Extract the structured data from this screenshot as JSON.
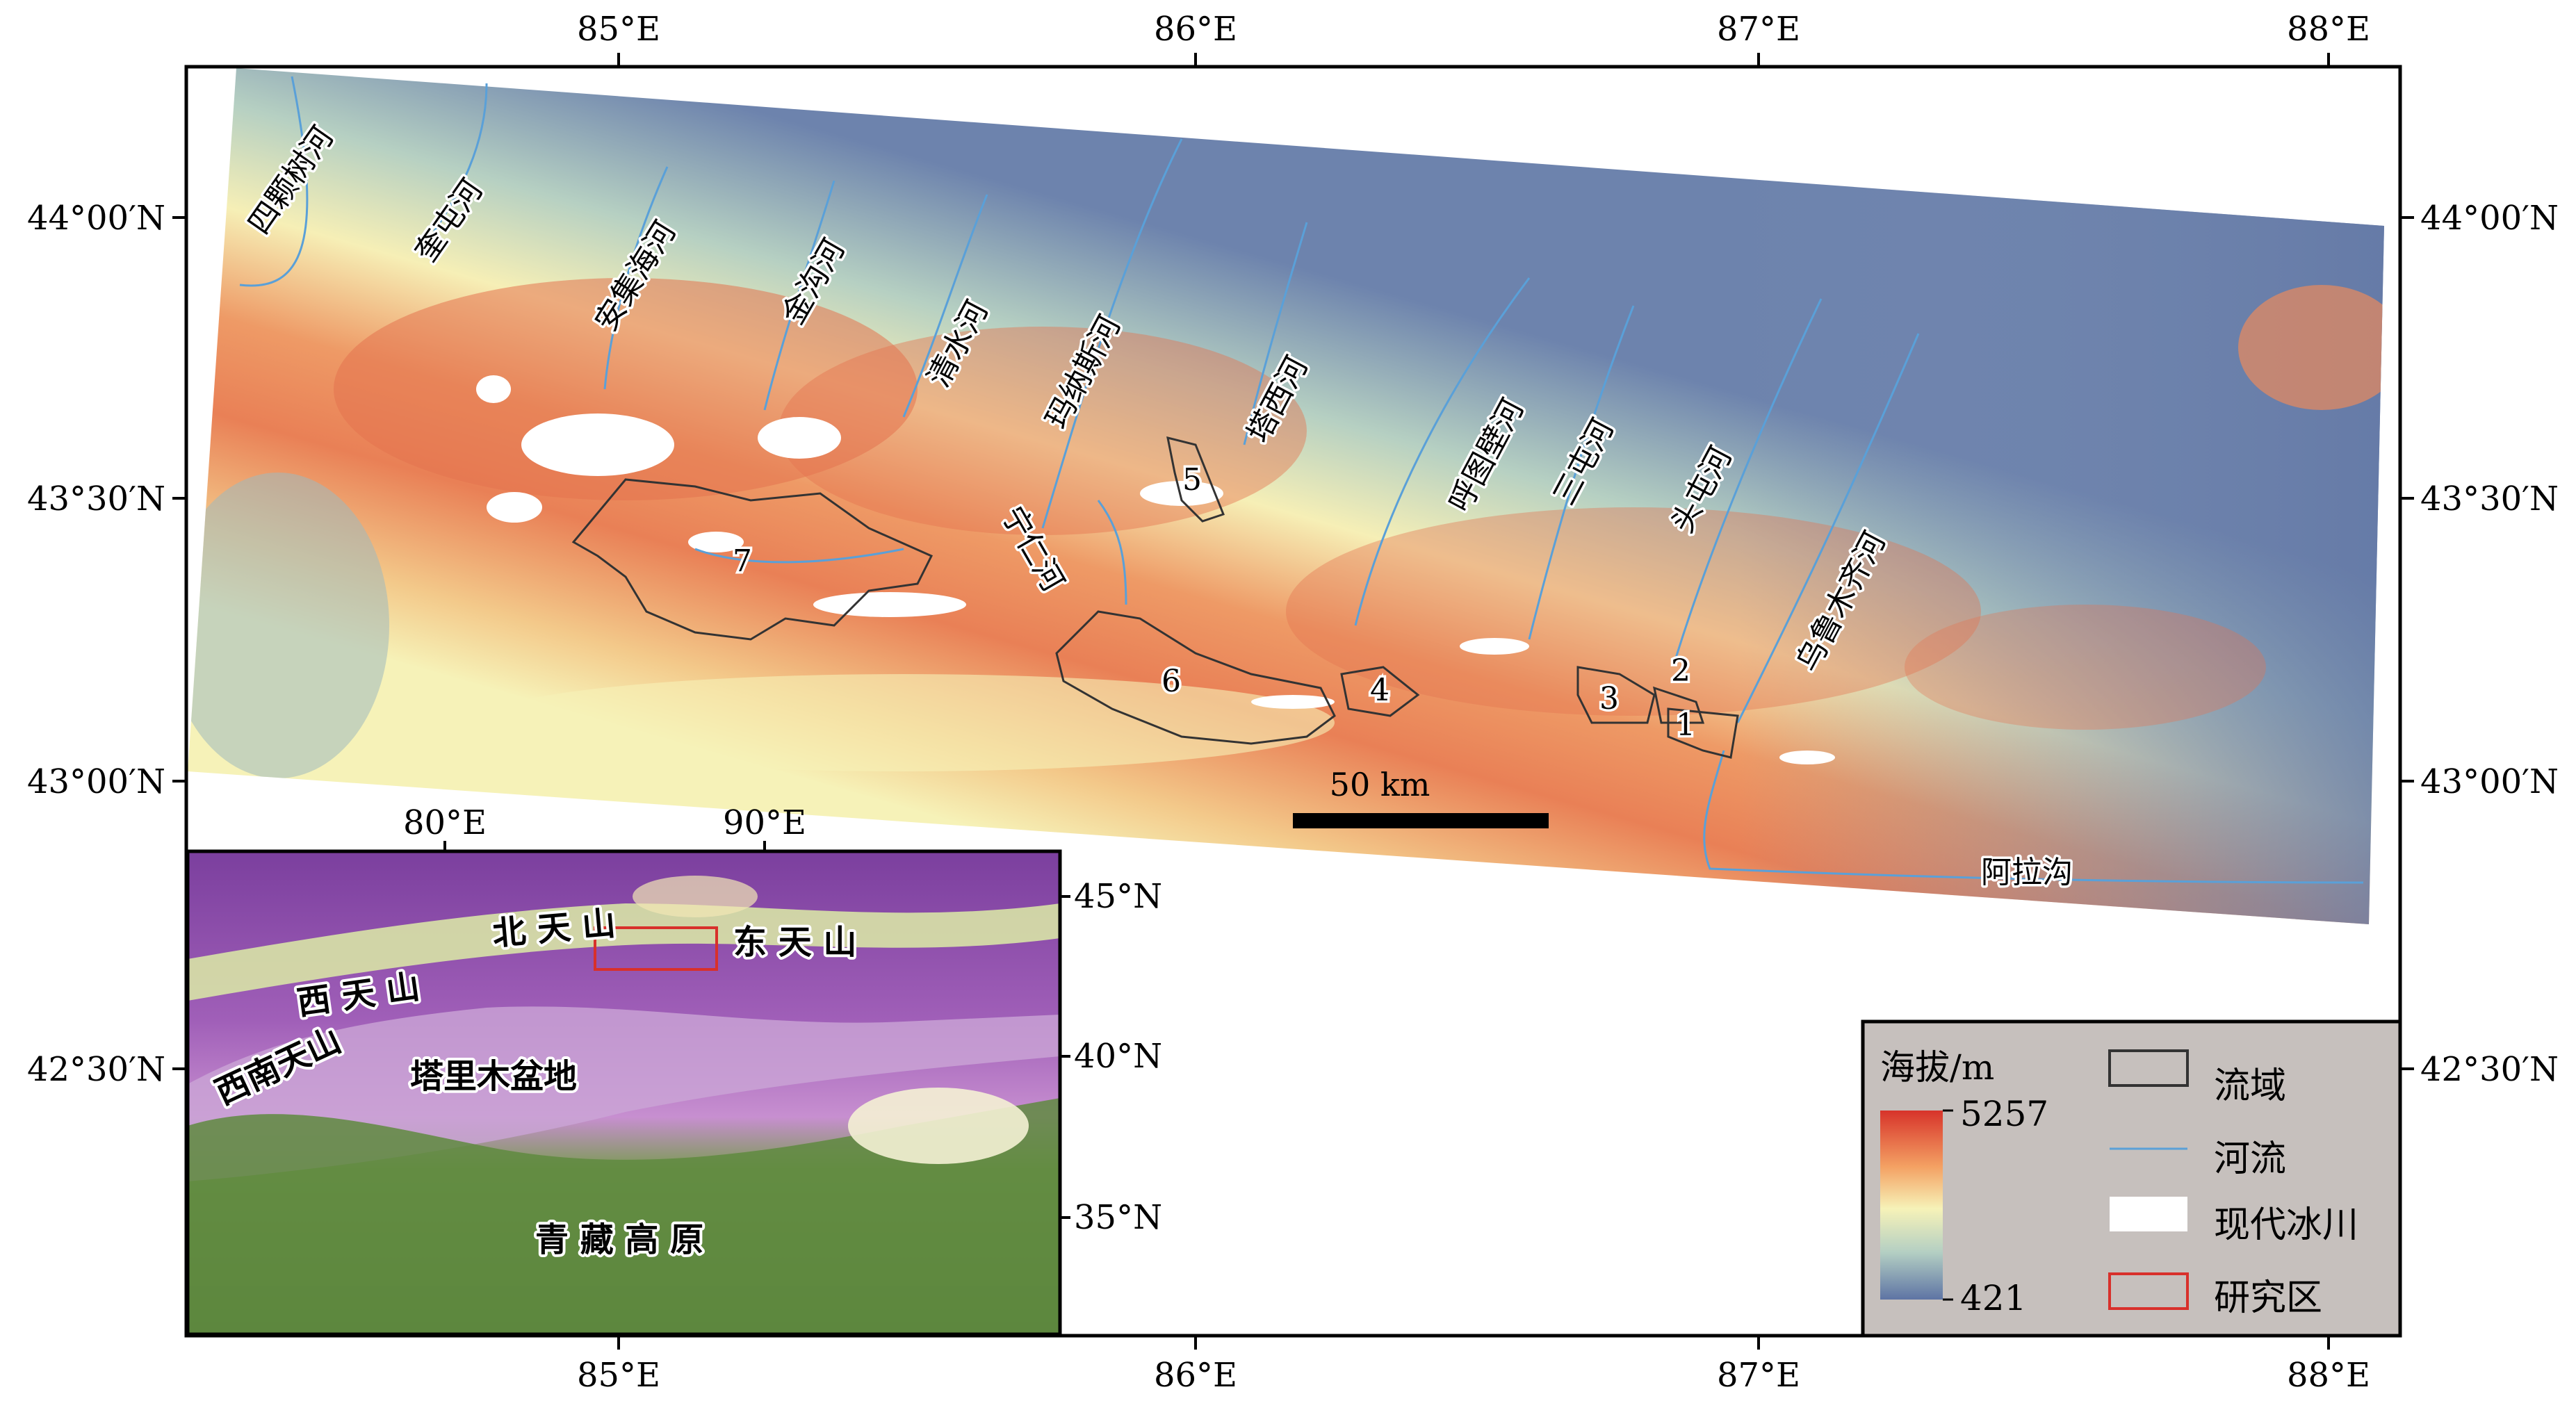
{
  "map": {
    "top_lon_ticks": [
      "85°E",
      "86°E",
      "87°E",
      "88°E"
    ],
    "bottom_lon_ticks": [
      "85°E",
      "86°E",
      "87°E",
      "88°E"
    ],
    "left_lat_ticks": [
      "44°00′N",
      "43°30′N",
      "43°00′N",
      "42°30′N"
    ],
    "right_lat_ticks": [
      "44°00′N",
      "43°30′N",
      "43°00′N",
      "42°30′N"
    ],
    "rivers": [
      {
        "id": "r1",
        "name": "四颗树河"
      },
      {
        "id": "r2",
        "name": "奎屯河"
      },
      {
        "id": "r3",
        "name": "安集海河"
      },
      {
        "id": "r4",
        "name": "金沟河"
      },
      {
        "id": "r5",
        "name": "清水河"
      },
      {
        "id": "r6",
        "name": "玛纳斯河"
      },
      {
        "id": "r7",
        "name": "塔西河"
      },
      {
        "id": "r8",
        "name": "宁仁河"
      },
      {
        "id": "r9",
        "name": "呼图壁河"
      },
      {
        "id": "r10",
        "name": "三屯河"
      },
      {
        "id": "r11",
        "name": "头屯河"
      },
      {
        "id": "r12",
        "name": "乌鲁木齐河"
      },
      {
        "id": "r13",
        "name": "阿拉沟"
      }
    ],
    "basins": [
      "1",
      "2",
      "3",
      "4",
      "5",
      "6",
      "7"
    ],
    "scale_bar": "50 km"
  },
  "inset": {
    "lon_ticks": [
      "80°E",
      "90°E"
    ],
    "lat_ticks": [
      "45°N",
      "40°N",
      "35°N"
    ],
    "labels": {
      "north_tianshan": "北 天 山",
      "east_tianshan": "东 天 山",
      "west_tianshan": "西   天   山",
      "southwest_tianshan": "西南天山",
      "tarim": "塔里木盆地",
      "tibet": "青   藏   高   原"
    }
  },
  "legend": {
    "title": "海拔/m",
    "max": "5257",
    "min": "421",
    "items": [
      {
        "id": "basin",
        "label": "流域"
      },
      {
        "id": "river",
        "label": "河流"
      },
      {
        "id": "glacier",
        "label": "现代冰川"
      },
      {
        "id": "study",
        "label": "研究区"
      }
    ],
    "colors": {
      "elev_high": "#d7332a",
      "elev_midhigh": "#f4a264",
      "elev_mid": "#f6f2b8",
      "elev_midlow": "#b4cfc3",
      "elev_low": "#5e74a4",
      "river": "#5aa0d8",
      "basin": "#333333",
      "glacier": "#ffffff",
      "study": "#d8302b",
      "legend_bg": "#c6c0bd"
    }
  }
}
